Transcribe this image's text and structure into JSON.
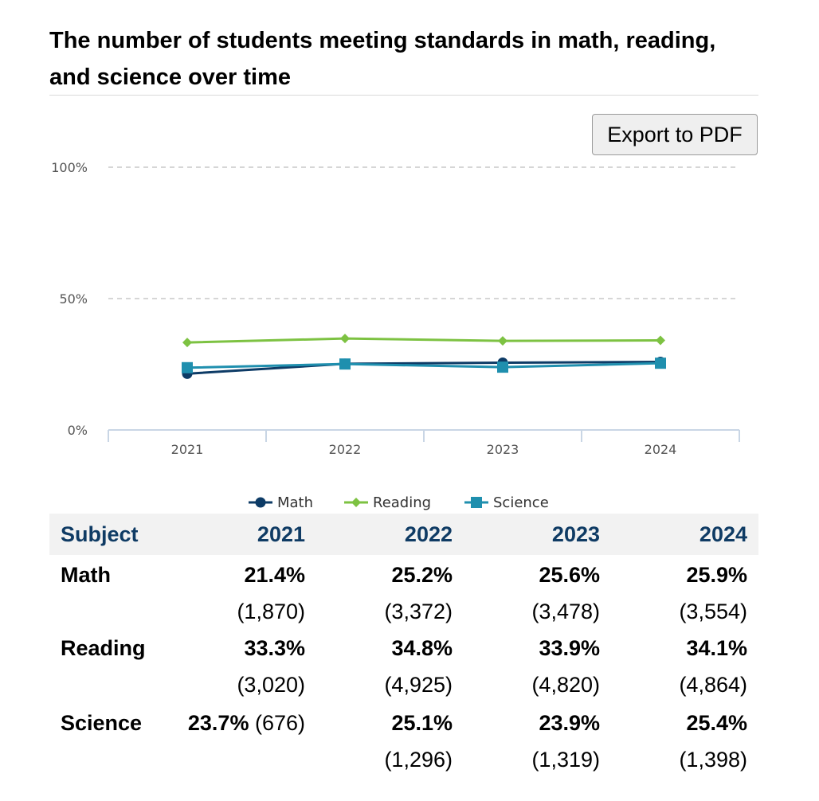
{
  "title": "The number of students meeting standards in math, reading, and science over time",
  "export_label": "Export to PDF",
  "chart_data": {
    "type": "line",
    "x": [
      "2021",
      "2022",
      "2023",
      "2024"
    ],
    "y_ticks": [
      "0%",
      "50%",
      "100%"
    ],
    "ylim": [
      0,
      100
    ],
    "grid": true,
    "legend_position": "bottom",
    "series": [
      {
        "name": "Math",
        "values": [
          21.4,
          25.2,
          25.6,
          25.9
        ],
        "color": "#0d3b66",
        "marker": "circle"
      },
      {
        "name": "Reading",
        "values": [
          33.3,
          34.8,
          33.9,
          34.1
        ],
        "color": "#7dc242",
        "marker": "diamond"
      },
      {
        "name": "Science",
        "values": [
          23.7,
          25.1,
          23.9,
          25.4
        ],
        "color": "#1f8fae",
        "marker": "square"
      }
    ]
  },
  "table": {
    "headers": [
      "Subject",
      "2021",
      "2022",
      "2023",
      "2024"
    ],
    "rows": [
      {
        "subject": "Math",
        "cells": [
          {
            "pct": "21.4%",
            "count": "(1,870)"
          },
          {
            "pct": "25.2%",
            "count": "(3,372)"
          },
          {
            "pct": "25.6%",
            "count": "(3,478)"
          },
          {
            "pct": "25.9%",
            "count": "(3,554)"
          }
        ]
      },
      {
        "subject": "Reading",
        "cells": [
          {
            "pct": "33.3%",
            "count": "(3,020)"
          },
          {
            "pct": "34.8%",
            "count": "(4,925)"
          },
          {
            "pct": "33.9%",
            "count": "(4,820)"
          },
          {
            "pct": "34.1%",
            "count": "(4,864)"
          }
        ]
      },
      {
        "subject": "Science",
        "cells": [
          {
            "pct": "23.7%",
            "count": "(676)"
          },
          {
            "pct": "25.1%",
            "count": "(1,296)"
          },
          {
            "pct": "23.9%",
            "count": "(1,319)"
          },
          {
            "pct": "25.4%",
            "count": "(1,398)"
          }
        ]
      }
    ]
  }
}
